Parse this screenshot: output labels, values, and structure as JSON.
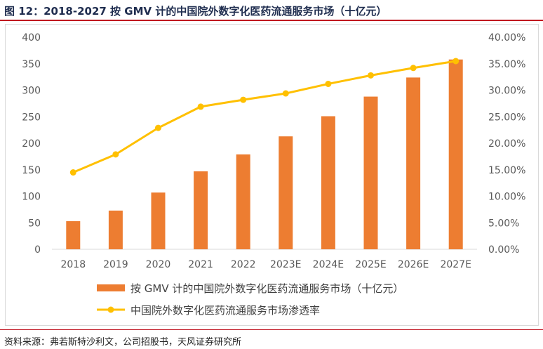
{
  "figure": {
    "title": "图 12：2018-2027 按 GMV 计的中国院外数字化医药流通服务市场（十亿元）",
    "source": "资料来源：弗若斯特沙利文，公司招股书，天风证券研究所"
  },
  "chart_data": {
    "type": "bar",
    "categories": [
      "2018",
      "2019",
      "2020",
      "2021",
      "2022",
      "2023E",
      "2024E",
      "2025E",
      "2026E",
      "2027E"
    ],
    "series": [
      {
        "name": "按 GMV 计的中国院外数字化医药流通服务市场（十亿元）",
        "type": "bar",
        "axis": "left",
        "color": "#ed7d31",
        "values": [
          53,
          73,
          107,
          147,
          179,
          213,
          251,
          288,
          324,
          358
        ]
      },
      {
        "name": "中国院外数字化医药流通服务市场渗透率",
        "type": "line",
        "axis": "right",
        "color": "#ffc000",
        "values": [
          14.5,
          17.9,
          22.9,
          26.9,
          28.2,
          29.4,
          31.2,
          32.8,
          34.2,
          35.5
        ]
      }
    ],
    "y_left": {
      "min": 0,
      "max": 400,
      "step": 50,
      "ticks": [
        "0",
        "50",
        "100",
        "150",
        "200",
        "250",
        "300",
        "350",
        "400"
      ]
    },
    "y_right": {
      "min": 0,
      "max": 40,
      "step": 5,
      "ticks": [
        "0.00%",
        "5.00%",
        "10.00%",
        "15.00%",
        "20.00%",
        "25.00%",
        "30.00%",
        "35.00%",
        "40.00%"
      ]
    },
    "grid": false,
    "legend_position": "bottom"
  }
}
